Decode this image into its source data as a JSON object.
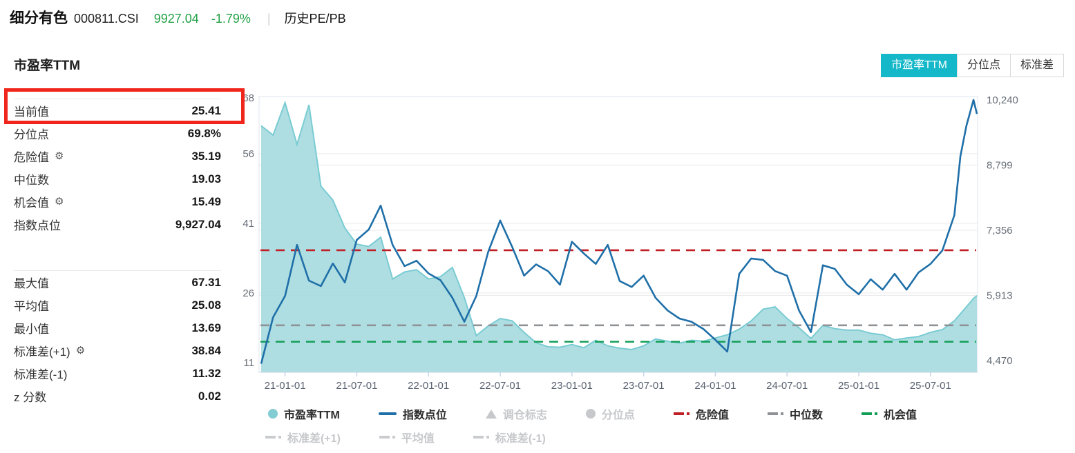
{
  "header": {
    "title": "细分有色",
    "code": "000811.CSI",
    "price": "9927.04",
    "change": "-1.79%",
    "divider": "|",
    "nav": "历史PE/PB"
  },
  "section": {
    "title": "市盈率TTM"
  },
  "tabs": [
    {
      "label": "市盈率TTM",
      "active": true
    },
    {
      "label": "分位点",
      "active": false
    },
    {
      "label": "标准差",
      "active": false
    }
  ],
  "stats": {
    "group1": [
      {
        "label": "当前值",
        "value": "25.41",
        "gear": false,
        "highlight": true
      },
      {
        "label": "分位点",
        "value": "69.8%",
        "gear": false
      },
      {
        "label": "危险值",
        "value": "35.19",
        "gear": true
      },
      {
        "label": "中位数",
        "value": "19.03",
        "gear": false
      },
      {
        "label": "机会值",
        "value": "15.49",
        "gear": true
      },
      {
        "label": "指数点位",
        "value": "9,927.04",
        "gear": false
      }
    ],
    "group2": [
      {
        "label": "最大值",
        "value": "67.31",
        "gear": false
      },
      {
        "label": "平均值",
        "value": "25.08",
        "gear": false
      },
      {
        "label": "最小值",
        "value": "13.69",
        "gear": false
      },
      {
        "label": "标准差(+1)",
        "value": "38.84",
        "gear": true
      },
      {
        "label": "标准差(-1)",
        "value": "11.32",
        "gear": false
      },
      {
        "label": "z 分数",
        "value": "0.02",
        "gear": false
      }
    ]
  },
  "colors": {
    "accent": "#14b8c8",
    "green_text": "#21a045",
    "highlight_box": "#f0261c",
    "area_fill": "#a5dade",
    "area_stroke": "#79cbd3",
    "index_line": "#1f6fa8",
    "danger": "#c01f25",
    "median": "#8e9296",
    "chance": "#129e57",
    "inactive": "#c6c8cb",
    "grid": "#e9e9ec",
    "axis_text": "#666d76",
    "axis_line": "#c9d4e8"
  },
  "chart_data": {
    "type": "line",
    "title": "市盈率TTM",
    "x_is_time": true,
    "x_start": "2020-11",
    "m": [
      0,
      1,
      2,
      3,
      4,
      5,
      6,
      7,
      8,
      9,
      10,
      11,
      12,
      13,
      14,
      15,
      16,
      17,
      18,
      19,
      20,
      21,
      22,
      23,
      24,
      25,
      26,
      27,
      28,
      29,
      30,
      31,
      32,
      33,
      34,
      35,
      36,
      37,
      38,
      39,
      40,
      41,
      42,
      43,
      44,
      45,
      46,
      47,
      48,
      49,
      50,
      51,
      52,
      53,
      54,
      55,
      56,
      57,
      58,
      58.5,
      59,
      59.6,
      60
    ],
    "series": [
      {
        "name": "市盈率TTM",
        "type": "area",
        "axis": "pe",
        "values": [
          62,
          60,
          67,
          58,
          66.5,
          49,
          46,
          40,
          36.5,
          36,
          38,
          29,
          30.5,
          31,
          29,
          29.5,
          31.5,
          25,
          16.8,
          18.9,
          20.5,
          20,
          17.5,
          15.3,
          14.4,
          14.3,
          14.9,
          14.2,
          15.8,
          14.6,
          14.1,
          13.8,
          14.6,
          16.1,
          15.6,
          15.2,
          15.8,
          15.6,
          16.3,
          17,
          18.2,
          20,
          22.5,
          23,
          20.5,
          18.5,
          16.2,
          19,
          18.3,
          18,
          18,
          17.3,
          17,
          15.9,
          16.3,
          16.6,
          17.5,
          18.1,
          20,
          21.5,
          23,
          24.8,
          25.41
        ]
      },
      {
        "name": "指数点位",
        "type": "line",
        "axis": "index",
        "values": [
          4400,
          5430,
          5900,
          7030,
          6240,
          6120,
          6620,
          6200,
          7140,
          7370,
          7900,
          7030,
          6560,
          6680,
          6400,
          6250,
          5860,
          5330,
          5900,
          6880,
          7570,
          6990,
          6350,
          6600,
          6450,
          6150,
          7100,
          6840,
          6610,
          7030,
          6230,
          6100,
          6350,
          5860,
          5580,
          5400,
          5330,
          5170,
          4930,
          4670,
          6390,
          6730,
          6700,
          6450,
          6350,
          5580,
          5100,
          6580,
          6500,
          6150,
          5940,
          6270,
          6040,
          6390,
          6040,
          6420,
          6610,
          6910,
          7690,
          8990,
          9660,
          10240,
          9930
        ]
      }
    ],
    "marker_lines": [
      {
        "label": "危险值",
        "value": 35.19,
        "color": "#c01f25"
      },
      {
        "label": "中位数",
        "value": 19.03,
        "color": "#8e9296"
      },
      {
        "label": "机会值",
        "value": 15.49,
        "color": "#129e57"
      }
    ],
    "axes": {
      "pe_range": [
        8.9,
        68.3
      ],
      "index_range": [
        4210,
        10315
      ],
      "left_ticks": [
        {
          "v": 68,
          "label": "68"
        },
        {
          "v": 56,
          "label": "56"
        },
        {
          "v": 41,
          "label": "41"
        },
        {
          "v": 26,
          "label": "26"
        },
        {
          "v": 11,
          "label": "11"
        }
      ],
      "right_ticks": [
        {
          "v": 10240,
          "label": "10,240"
        },
        {
          "v": 8799,
          "label": "8,799"
        },
        {
          "v": 7356,
          "label": "7,356"
        },
        {
          "v": 5913,
          "label": "5,913"
        },
        {
          "v": 4470,
          "label": "4,470"
        }
      ],
      "grid_left_v": [
        56,
        41,
        26
      ],
      "grid_right_v": [
        8799,
        7356,
        5913
      ],
      "x_ticks": [
        {
          "m": 2,
          "label": "21-01-01"
        },
        {
          "m": 8,
          "label": "21-07-01"
        },
        {
          "m": 14,
          "label": "22-01-01"
        },
        {
          "m": 20,
          "label": "22-07-01"
        },
        {
          "m": 26,
          "label": "23-01-01"
        },
        {
          "m": 32,
          "label": "23-07-01"
        },
        {
          "m": 38,
          "label": "24-01-01"
        },
        {
          "m": 44,
          "label": "24-07-01"
        },
        {
          "m": 50,
          "label": "25-01-01"
        },
        {
          "m": 56,
          "label": "25-07-01"
        }
      ]
    },
    "legend": {
      "row1": [
        {
          "label": "市盈率TTM",
          "marker": "circle",
          "color": "#82ccd4",
          "active": true
        },
        {
          "label": "指数点位",
          "marker": "line",
          "color": "#1f6fa8",
          "active": true
        },
        {
          "label": "调仓标志",
          "marker": "triangle",
          "color": "#c6c8cb",
          "active": false
        },
        {
          "label": "分位点",
          "marker": "circle",
          "color": "#c6c8cb",
          "active": false
        },
        {
          "label": "危险值",
          "marker": "dashdot",
          "color": "#c01f25",
          "active": true
        },
        {
          "label": "中位数",
          "marker": "dashdot",
          "color": "#8e9296",
          "active": true
        },
        {
          "label": "机会值",
          "marker": "dashdot",
          "color": "#129e57",
          "active": true
        }
      ],
      "row2": [
        {
          "label": "标准差(+1)",
          "marker": "dashdot",
          "color": "#c9cbce",
          "active": false
        },
        {
          "label": "平均值",
          "marker": "dashdot",
          "color": "#c9cbce",
          "active": false
        },
        {
          "label": "标准差(-1)",
          "marker": "dashdot",
          "color": "#c9cbce",
          "active": false
        }
      ]
    }
  }
}
